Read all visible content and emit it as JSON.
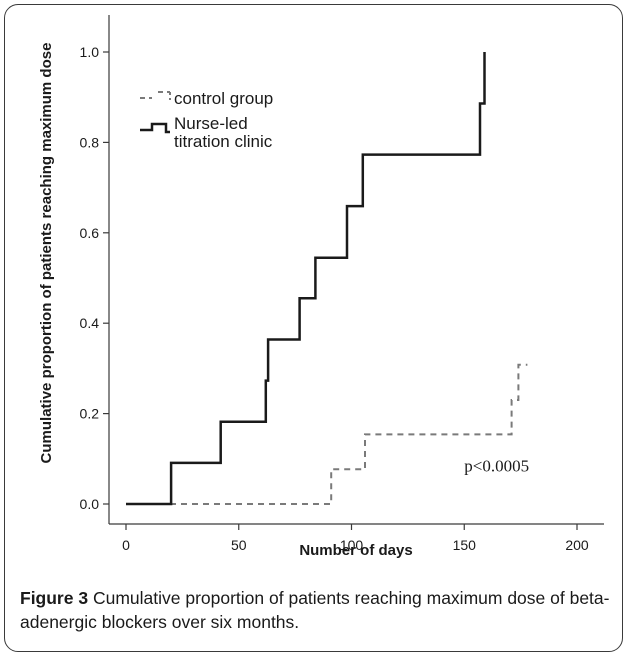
{
  "caption": {
    "label": "Figure 3",
    "text": "Cumulative proportion of patients reaching maximum dose of beta-adenergic blockers over six months."
  },
  "colors": {
    "axis": "#3a3a3a",
    "nurse_line": "#1a1a1a",
    "control_line": "#7a7a7a",
    "text": "#1a1a1a"
  },
  "chart_data": {
    "type": "line",
    "title": "",
    "xlabel": "Number of days",
    "ylabel": "Cumulative proportion of patients reaching maximum dose",
    "xlim": [
      0,
      200
    ],
    "ylim": [
      0,
      1.0
    ],
    "x_ticks": [
      0,
      50,
      100,
      150,
      200
    ],
    "x_tick_labels": [
      "0",
      "50",
      "100",
      "150",
      "200"
    ],
    "y_ticks": [
      0,
      0.2,
      0.4,
      0.6,
      0.8,
      1.0
    ],
    "y_tick_labels": [
      "0.0",
      "0.2",
      "0.4",
      "0.6",
      "0.8",
      "1.0"
    ],
    "grid": false,
    "legend_position": "top-left",
    "step": true,
    "series": [
      {
        "name": "control group",
        "style": "dashed",
        "points": [
          [
            0,
            0
          ],
          [
            91,
            0
          ],
          [
            91,
            0.077
          ],
          [
            106,
            0.077
          ],
          [
            106,
            0.154
          ],
          [
            171,
            0.154
          ],
          [
            171,
            0.23
          ],
          [
            174,
            0.23
          ],
          [
            174,
            0.308
          ],
          [
            178,
            0.308
          ]
        ]
      },
      {
        "name": "Nurse-led titration clinic",
        "style": "solid",
        "points": [
          [
            0,
            0
          ],
          [
            20,
            0
          ],
          [
            20,
            0.091
          ],
          [
            42,
            0.091
          ],
          [
            42,
            0.182
          ],
          [
            62,
            0.182
          ],
          [
            62,
            0.273
          ],
          [
            63,
            0.273
          ],
          [
            63,
            0.364
          ],
          [
            77,
            0.364
          ],
          [
            77,
            0.455
          ],
          [
            84,
            0.455
          ],
          [
            84,
            0.545
          ],
          [
            98,
            0.545
          ],
          [
            98,
            0.659
          ],
          [
            105,
            0.659
          ],
          [
            105,
            0.773
          ],
          [
            157,
            0.773
          ],
          [
            157,
            0.886
          ],
          [
            159,
            0.886
          ],
          [
            159,
            1.0
          ]
        ]
      }
    ],
    "annotations": [
      {
        "text": "p<0.0005",
        "x": 150,
        "y": 0.072
      }
    ]
  }
}
